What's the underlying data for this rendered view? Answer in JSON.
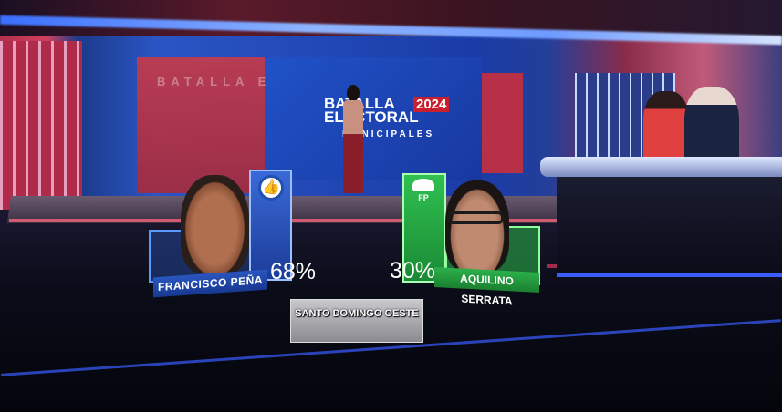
{
  "studio": {
    "wall_text": "BATALLA E",
    "logo": {
      "line1": "BATALLA",
      "line2": "ELECTORAL",
      "year": "2024",
      "line3": "MUNICIPALES"
    }
  },
  "results": {
    "region": "SANTO DOMINGO OESTE",
    "candidates": [
      {
        "name": "FRANCISCO PEÑA",
        "percent": "68%",
        "party_color": "#2a56c0",
        "party_icon": "thumbs-up-circle-icon"
      },
      {
        "name": "AQUILINO SERRATA",
        "percent": "30%",
        "party_abbr": "FP",
        "party_color": "#2cb04a",
        "party_icon": "leaf-icon"
      }
    ]
  }
}
